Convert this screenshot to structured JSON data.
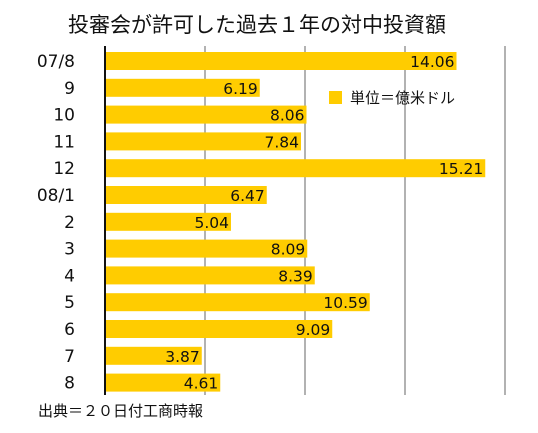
{
  "chart_data": {
    "type": "bar",
    "orientation": "horizontal",
    "title": "投審会が許可した過去１年の対中投資額",
    "categories": [
      "07/8",
      "9",
      "10",
      "11",
      "12",
      "08/1",
      "2",
      "3",
      "4",
      "5",
      "6",
      "7",
      "8"
    ],
    "series": [
      {
        "name": "単位＝億米ドル",
        "values": [
          14.06,
          6.19,
          8.06,
          7.84,
          15.21,
          6.47,
          5.04,
          8.09,
          8.39,
          10.59,
          9.09,
          3.87,
          4.61
        ],
        "labels": [
          "14.06",
          "6.19",
          "8.06",
          "7.84",
          "15.21",
          "6.47",
          "5.04",
          "8.09",
          "8.39",
          "10.59",
          "9.09",
          "3.87",
          "4.61"
        ]
      }
    ],
    "xlim": [
      0,
      16
    ],
    "grid": true,
    "legend": "top-right",
    "bar_color": "#FFCC00",
    "grid_color": "#999999",
    "source": "出典＝２０日付工商時報"
  }
}
